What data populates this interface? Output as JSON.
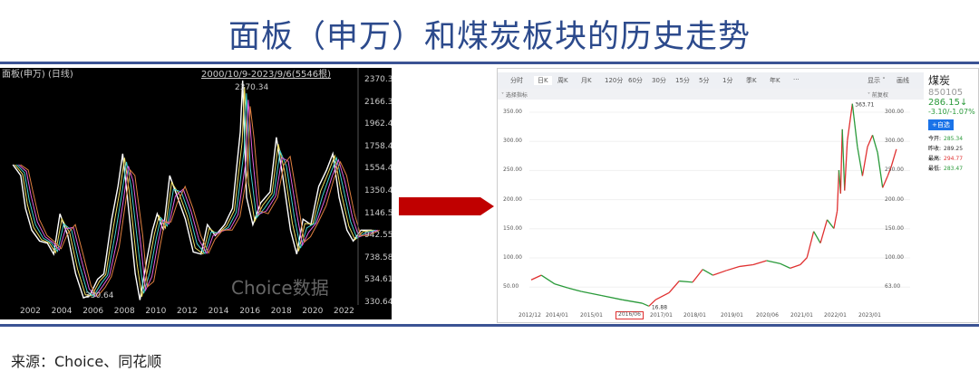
{
  "title": "面板（申万）和煤炭板块的历史走势",
  "source": "来源：Choice、同花顺",
  "colors": {
    "title": "#2c4a8c",
    "arrow": "#c00000",
    "up": "#e03030",
    "down": "#2a9a3a"
  },
  "chart_data": [
    {
      "type": "line",
      "title": "面板(申万) (日线)",
      "range_label": "2000/10/9-2023/9/6(5546根)",
      "watermark": "Choice数据",
      "y_ticks": [
        "2370.3",
        "2166.3",
        "1962.4",
        "1758.4",
        "1554.4",
        "1350.4",
        "1146.5",
        "942.55",
        "738.58",
        "534.61",
        "330.64"
      ],
      "x_ticks": [
        "2002",
        "2004",
        "2006",
        "2008",
        "2010",
        "2012",
        "2014",
        "2016",
        "2018",
        "2020",
        "2022"
      ],
      "ylim": [
        330.64,
        2370.3
      ],
      "annotations": {
        "max": "2370.34",
        "min": "330.64"
      },
      "x": [
        2000.8,
        2001.3,
        2001.6,
        2002,
        2002.5,
        2003,
        2003.4,
        2003.8,
        2004.3,
        2004.8,
        2005.3,
        2005.7,
        2006.2,
        2006.6,
        2007.1,
        2007.5,
        2007.8,
        2008.1,
        2008.6,
        2008.9,
        2009.3,
        2009.7,
        2010,
        2010.4,
        2010.8,
        2011.3,
        2011.8,
        2012.3,
        2012.8,
        2013.2,
        2013.7,
        2014.3,
        2014.8,
        2015.3,
        2015.45,
        2015.7,
        2016.1,
        2016.6,
        2017.2,
        2017.6,
        2018,
        2018.5,
        2018.9,
        2019.3,
        2019.8,
        2020.3,
        2020.8,
        2021.2,
        2021.6,
        2022.1,
        2022.5,
        2023,
        2023.7
      ],
      "y": [
        1600,
        1500,
        1200,
        1000,
        900,
        880,
        780,
        1150,
        950,
        600,
        380,
        400,
        550,
        600,
        1100,
        1400,
        1700,
        1300,
        600,
        360,
        700,
        1000,
        1150,
        1000,
        1500,
        1300,
        1100,
        800,
        780,
        1050,
        950,
        1050,
        1200,
        1900,
        2370,
        1300,
        1050,
        1250,
        1350,
        1850,
        1500,
        1000,
        780,
        1100,
        1050,
        1400,
        1550,
        1700,
        1300,
        1000,
        900,
        1000,
        1000
      ]
    },
    {
      "type": "line",
      "name": "煤炭",
      "y_ticks_left": [
        "350.00",
        "300.00",
        "250.00",
        "200.00",
        "150.00",
        "100.00",
        "50.00"
      ],
      "y_ticks_right": [
        "300.00",
        "300.00",
        "250.00",
        "200.00",
        "150.00",
        "100.00",
        "63.00"
      ],
      "x_ticks": [
        "2012/12",
        "2014/01",
        "2015/01",
        "2016/06",
        "2017/01",
        "2018/01",
        "2019/01",
        "2020/06",
        "2021/01",
        "2022/01",
        "2023/01"
      ],
      "highlighted_tick": "2016/06",
      "ylim": [
        10,
        370
      ],
      "annotations": {
        "max": "363.71",
        "min": "16.88"
      },
      "x": [
        2012.9,
        2013.2,
        2013.6,
        2014,
        2014.4,
        2015,
        2015.6,
        2016.2,
        2016.4,
        2016.6,
        2017,
        2017.3,
        2017.7,
        2018,
        2018.3,
        2018.7,
        2019.1,
        2019.5,
        2019.9,
        2020.3,
        2020.6,
        2020.9,
        2021.1,
        2021.3,
        2021.5,
        2021.7,
        2021.9,
        2022.0,
        2022.05,
        2022.1,
        2022.15,
        2022.22,
        2022.3,
        2022.45,
        2022.6,
        2022.75,
        2022.9,
        2023.05,
        2023.2,
        2023.35,
        2023.5,
        2023.6,
        2023.76
      ],
      "y": [
        62,
        70,
        55,
        48,
        42,
        35,
        28,
        22,
        17,
        28,
        40,
        60,
        58,
        80,
        70,
        78,
        85,
        88,
        95,
        90,
        82,
        88,
        100,
        145,
        125,
        165,
        150,
        180,
        250,
        210,
        320,
        215,
        300,
        363.7,
        290,
        240,
        290,
        310,
        280,
        220,
        240,
        255,
        286
      ]
    }
  ],
  "coal_panel": {
    "tabs": [
      "分时",
      "日K",
      "周K",
      "月K",
      "120分",
      "60分",
      "30分",
      "15分",
      "5分",
      "1分",
      "季K",
      "年K",
      "···"
    ],
    "active_tab": "日K",
    "display": "显示 ˅",
    "draw": "画线",
    "indicator": "˅ 选择指标",
    "adjust": "˅ 前复权",
    "name": "煤炭",
    "code": "850105",
    "price": "286.15↓",
    "change": "-3.10/-1.07%",
    "add_watch": "+自选",
    "stats": [
      {
        "label": "今开:",
        "value": "285.34",
        "color": "#2a9a3a"
      },
      {
        "label": "昨收:",
        "value": "289.25",
        "color": "#333"
      },
      {
        "label": "最高:",
        "value": "294.77",
        "color": "#e03030"
      },
      {
        "label": "最低:",
        "value": "283.47",
        "color": "#2a9a3a"
      }
    ]
  }
}
